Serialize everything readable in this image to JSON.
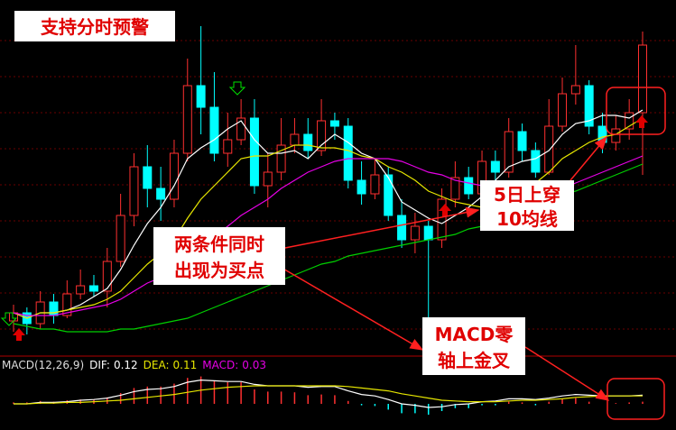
{
  "chart_data": [
    {
      "type": "candlestick",
      "ylim": [
        8,
        21
      ],
      "grid": true,
      "up_color": "#ff3030",
      "down_color": "#00ffff",
      "open": [
        9.3,
        9.6,
        9.2,
        10.0,
        9.5,
        10.3,
        10.6,
        10.4,
        11.5,
        13.2,
        15.0,
        14.2,
        13.8,
        15.5,
        18.0,
        17.2,
        15.5,
        16.0,
        16.8,
        14.3,
        14.8,
        15.8,
        16.2,
        15.6,
        16.7,
        16.5,
        14.5,
        14.0,
        14.7,
        13.2,
        12.3,
        12.8,
        12.3,
        13.8,
        14.6,
        14.0,
        15.2,
        14.8,
        16.3,
        15.6,
        14.8,
        16.5,
        17.7,
        18.0,
        16.5,
        15.9,
        16.4,
        17.0
      ],
      "close": [
        9.6,
        9.2,
        10.0,
        9.5,
        10.3,
        10.6,
        10.4,
        11.5,
        13.2,
        15.0,
        14.2,
        13.8,
        15.5,
        18.0,
        17.2,
        15.5,
        16.0,
        16.8,
        14.3,
        14.8,
        15.8,
        16.2,
        15.6,
        16.7,
        16.5,
        14.5,
        14.0,
        14.7,
        13.2,
        12.3,
        12.8,
        12.3,
        13.8,
        14.6,
        14.0,
        15.2,
        14.8,
        16.3,
        15.6,
        14.8,
        16.5,
        17.7,
        18.0,
        16.5,
        15.9,
        16.4,
        17.0,
        19.5
      ],
      "low": [
        8.9,
        8.8,
        9.0,
        9.2,
        9.4,
        10.1,
        10.2,
        9.8,
        11.3,
        12.8,
        13.5,
        13.0,
        13.5,
        15.2,
        16.2,
        15.2,
        15.0,
        15.8,
        14.0,
        13.5,
        14.5,
        15.5,
        15.3,
        15.4,
        16.0,
        14.2,
        13.6,
        13.8,
        13.0,
        12.0,
        11.8,
        9.0,
        12.0,
        13.5,
        13.8,
        13.8,
        14.4,
        14.6,
        15.2,
        14.6,
        14.7,
        16.3,
        17.3,
        16.2,
        15.5,
        15.6,
        16.0,
        14.7
      ],
      "high": [
        9.9,
        9.8,
        10.4,
        10.3,
        10.8,
        11.2,
        11.0,
        12.0,
        14.0,
        15.5,
        15.8,
        15.0,
        16.0,
        19.0,
        20.2,
        18.5,
        17.0,
        17.5,
        17.5,
        15.5,
        16.8,
        16.8,
        16.8,
        17.5,
        17.0,
        16.8,
        15.2,
        15.3,
        15.0,
        13.8,
        13.3,
        13.0,
        14.2,
        15.2,
        15.0,
        15.6,
        15.6,
        16.8,
        16.6,
        15.9,
        17.5,
        18.3,
        19.5,
        18.2,
        17.0,
        16.9,
        17.5,
        20.0
      ],
      "series": [
        {
          "color": "#ffffff",
          "values": [
            9.6,
            9.4,
            9.6,
            9.6,
            9.7,
            9.9,
            10.2,
            10.5,
            11.2,
            12.1,
            12.9,
            13.5,
            14.3,
            15.3,
            15.7,
            16.0,
            16.4,
            16.7,
            16.0,
            15.5,
            15.5,
            15.6,
            15.3,
            15.8,
            16.2,
            15.9,
            15.5,
            15.3,
            14.6,
            13.7,
            13.4,
            13.1,
            12.9,
            13.2,
            13.5,
            13.9,
            14.5,
            15.0,
            15.2,
            15.3,
            15.6,
            16.2,
            16.6,
            16.7,
            16.9,
            16.9,
            16.8,
            17.1
          ]
        },
        {
          "color": "#e6e600",
          "values": [
            9.6,
            9.4,
            9.6,
            9.6,
            9.7,
            9.8,
            9.9,
            10.1,
            10.4,
            10.9,
            11.4,
            11.8,
            12.3,
            13.1,
            13.8,
            14.3,
            14.8,
            15.3,
            15.4,
            15.4,
            15.6,
            15.8,
            15.8,
            15.7,
            15.7,
            15.6,
            15.4,
            15.3,
            15.0,
            14.8,
            14.5,
            14.1,
            13.9,
            13.7,
            13.6,
            13.5,
            13.6,
            13.9,
            14.2,
            14.4,
            14.8,
            15.3,
            15.6,
            15.9,
            16.1,
            16.2,
            16.5,
            16.8
          ]
        },
        {
          "color": "#e600e6",
          "values": [
            9.6,
            9.5,
            9.5,
            9.5,
            9.6,
            9.7,
            9.8,
            9.9,
            10.1,
            10.4,
            10.7,
            10.9,
            11.2,
            11.6,
            12.0,
            12.4,
            12.8,
            13.2,
            13.5,
            13.8,
            14.2,
            14.5,
            14.8,
            15.0,
            15.2,
            15.3,
            15.3,
            15.3,
            15.3,
            15.2,
            15.0,
            14.8,
            14.7,
            14.5,
            14.4,
            14.3,
            14.2,
            14.1,
            14.1,
            14.0,
            14.1,
            14.2,
            14.4,
            14.6,
            14.8,
            15.0,
            15.2,
            15.4
          ]
        },
        {
          "color": "#00d000",
          "values": [
            9.2,
            9.1,
            9.0,
            9.0,
            8.9,
            8.9,
            8.9,
            8.9,
            9.0,
            9.0,
            9.1,
            9.2,
            9.3,
            9.4,
            9.6,
            9.8,
            10.0,
            10.2,
            10.4,
            10.6,
            10.8,
            11.0,
            11.2,
            11.4,
            11.5,
            11.7,
            11.8,
            11.9,
            12.0,
            12.1,
            12.2,
            12.3,
            12.4,
            12.5,
            12.7,
            12.8,
            13.0,
            13.2,
            13.4,
            13.6,
            13.8,
            14.0,
            14.1,
            14.3,
            14.5,
            14.7,
            14.9,
            15.1
          ]
        }
      ]
    },
    {
      "type": "macd",
      "title": "MACD(12,26,9)",
      "ylim": [
        -0.25,
        0.45
      ],
      "histogram": {
        "name": "MACD:",
        "color": "#e600e6",
        "up_color": "#ff3030",
        "down_color": "#00ffff",
        "values": [
          0.02,
          0.02,
          0.04,
          0.03,
          0.05,
          0.06,
          0.06,
          0.09,
          0.15,
          0.22,
          0.24,
          0.24,
          0.28,
          0.36,
          0.38,
          0.32,
          0.3,
          0.3,
          0.2,
          0.17,
          0.17,
          0.16,
          0.12,
          0.13,
          0.12,
          0.04,
          -0.02,
          -0.03,
          -0.08,
          -0.13,
          -0.13,
          -0.15,
          -0.1,
          -0.06,
          -0.06,
          -0.02,
          -0.02,
          0.03,
          0.02,
          -0.02,
          0.03,
          0.07,
          0.08,
          0.03,
          0.0,
          0.01,
          0.02,
          0.03
        ]
      },
      "series": [
        {
          "name": "DIF:",
          "color": "#ffffff",
          "values": [
            0.0,
            0.0,
            0.02,
            0.02,
            0.03,
            0.05,
            0.06,
            0.08,
            0.12,
            0.17,
            0.2,
            0.21,
            0.24,
            0.3,
            0.33,
            0.32,
            0.31,
            0.31,
            0.27,
            0.25,
            0.25,
            0.25,
            0.23,
            0.24,
            0.24,
            0.18,
            0.13,
            0.11,
            0.06,
            0.0,
            -0.02,
            -0.05,
            -0.04,
            -0.01,
            0.0,
            0.03,
            0.04,
            0.07,
            0.07,
            0.06,
            0.08,
            0.11,
            0.13,
            0.12,
            0.11,
            0.11,
            0.11,
            0.12
          ]
        },
        {
          "name": "DEA:",
          "color": "#e6e600",
          "values": [
            0.0,
            0.0,
            0.01,
            0.01,
            0.02,
            0.02,
            0.03,
            0.04,
            0.05,
            0.07,
            0.09,
            0.11,
            0.13,
            0.16,
            0.19,
            0.21,
            0.23,
            0.24,
            0.25,
            0.25,
            0.25,
            0.25,
            0.25,
            0.25,
            0.25,
            0.24,
            0.22,
            0.2,
            0.18,
            0.14,
            0.11,
            0.08,
            0.05,
            0.04,
            0.03,
            0.03,
            0.03,
            0.04,
            0.05,
            0.05,
            0.06,
            0.07,
            0.09,
            0.1,
            0.11,
            0.11,
            0.11,
            0.11
          ]
        }
      ]
    }
  ],
  "annotations": {
    "alert": "支持分时预警",
    "buy_point": [
      "两条件同时",
      "出现为买点"
    ],
    "cross_5_10": [
      "5日上穿",
      "10均线"
    ],
    "macd_cross": [
      "MACD零",
      "轴上金叉"
    ]
  }
}
